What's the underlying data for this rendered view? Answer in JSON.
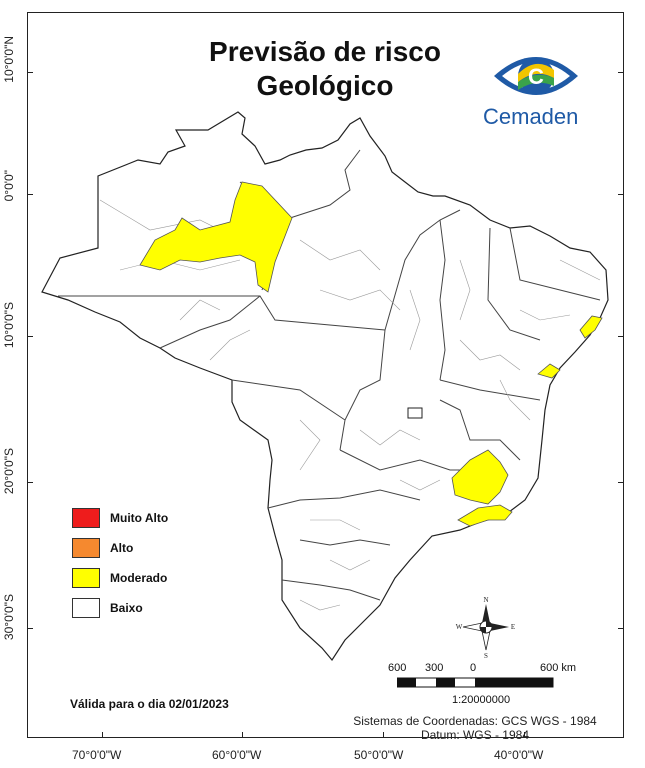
{
  "title_line1": "Previsão de risco",
  "title_line2": "Geológico",
  "logo": {
    "text": "Cemaden",
    "icon": "cemaden-eye-logo"
  },
  "latitude_labels": [
    "10°0'0\"N",
    "0°0'0\"",
    "10°0'0\"S",
    "20°0'0\"S",
    "30°0'0\"S"
  ],
  "longitude_labels": [
    "70°0'0\"W",
    "60°0'0\"W",
    "50°0'0\"W",
    "40°0'0\"W"
  ],
  "legend": [
    {
      "label": "Muito Alto",
      "color": "#ee1c1c"
    },
    {
      "label": "Alto",
      "color": "#f5892f"
    },
    {
      "label": "Moderado",
      "color": "#ffff00"
    },
    {
      "label": "Baixo",
      "color": "#ffffff"
    }
  ],
  "compass": {
    "n": "N",
    "s": "S",
    "e": "E",
    "w": "W"
  },
  "scale_bar": {
    "labels": [
      "600",
      "300",
      "0",
      "600 km"
    ],
    "ratio": "1:20000000"
  },
  "valid_date": "Válida para o dia 02/01/2023",
  "coord_system": "Sistemas de Coordenadas: GCS WGS - 1984",
  "datum": "Datum: WGS - 1984",
  "colors": {
    "moderado": "#ffff00",
    "outline": "#555555",
    "text": "#111111",
    "logo_blue": "#1f5aa6"
  }
}
